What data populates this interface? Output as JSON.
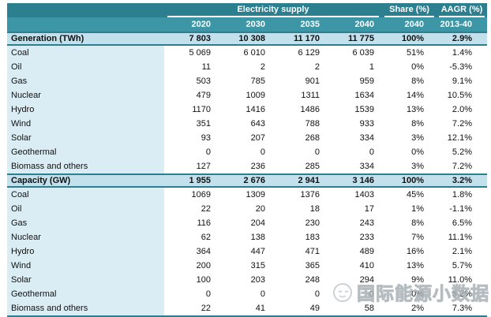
{
  "table": {
    "header": {
      "group_label": "Electricity supply",
      "share_label": "Share (%)",
      "aagr_label": "AAGR (%)",
      "year_columns": [
        "2020",
        "2030",
        "2035",
        "2040"
      ],
      "share_year": "2040",
      "aagr_period": "2013-40"
    },
    "sections": [
      {
        "title": "Generation (TWh)",
        "totals": [
          "7 803",
          "10 308",
          "11 170",
          "11 775",
          "100%",
          "2.9%"
        ],
        "rows": [
          {
            "label": "Coal",
            "values": [
              "5 069",
              "6 010",
              "6 129",
              "6 039",
              "51%",
              "1.4%"
            ]
          },
          {
            "label": "Oil",
            "values": [
              "11",
              "2",
              "2",
              "1",
              "0%",
              "-5.3%"
            ]
          },
          {
            "label": "Gas",
            "values": [
              "503",
              "785",
              "901",
              "959",
              "8%",
              "9.1%"
            ]
          },
          {
            "label": "Nuclear",
            "values": [
              "479",
              "1009",
              "1311",
              "1634",
              "14%",
              "10.5%"
            ]
          },
          {
            "label": "Hydro",
            "values": [
              "1170",
              "1416",
              "1486",
              "1539",
              "13%",
              "2.0%"
            ]
          },
          {
            "label": "Wind",
            "values": [
              "351",
              "643",
              "788",
              "933",
              "8%",
              "7.2%"
            ]
          },
          {
            "label": "Solar",
            "values": [
              "93",
              "207",
              "268",
              "334",
              "3%",
              "12.1%"
            ]
          },
          {
            "label": "Geothermal",
            "values": [
              "0",
              "0",
              "0",
              "0",
              "0%",
              "5.2%"
            ]
          },
          {
            "label": "Biomass and others",
            "values": [
              "127",
              "236",
              "285",
              "334",
              "3%",
              "7.2%"
            ]
          }
        ]
      },
      {
        "title": "Capacity (GW)",
        "totals": [
          "1 955",
          "2 676",
          "2 941",
          "3 146",
          "100%",
          "3.2%"
        ],
        "rows": [
          {
            "label": "Coal",
            "values": [
              "1069",
              "1309",
              "1376",
              "1403",
              "45%",
              "1.8%"
            ]
          },
          {
            "label": "Oil",
            "values": [
              "22",
              "20",
              "18",
              "17",
              "1%",
              "-1.1%"
            ]
          },
          {
            "label": "Gas",
            "values": [
              "116",
              "204",
              "230",
              "243",
              "8%",
              "6.5%"
            ]
          },
          {
            "label": "Nuclear",
            "values": [
              "62",
              "138",
              "183",
              "233",
              "7%",
              "11.1%"
            ]
          },
          {
            "label": "Hydro",
            "values": [
              "364",
              "447",
              "471",
              "489",
              "16%",
              "2.1%"
            ]
          },
          {
            "label": "Wind",
            "values": [
              "200",
              "315",
              "365",
              "410",
              "13%",
              "5.7%"
            ]
          },
          {
            "label": "Solar",
            "values": [
              "100",
              "203",
              "248",
              "294",
              "9%",
              "11.0%"
            ]
          },
          {
            "label": "Geothermal",
            "values": [
              "0",
              "0",
              "0",
              "0",
              "0%",
              "5.2%"
            ]
          },
          {
            "label": "Biomass and others",
            "values": [
              "22",
              "41",
              "49",
              "58",
              "2%",
              "7.3%"
            ]
          }
        ]
      }
    ]
  },
  "watermark": {
    "text": "国际能源小数据",
    "logo": "smiley-face-logo"
  },
  "colors": {
    "header_teal_dark": "#2B7F8E",
    "header_teal_light": "#3D96A5",
    "section_row_blue": "#C2E1ED",
    "label_column_blue": "#DAEDF5",
    "rule_teal": "#2B7F8E",
    "watermark_gray": "#BAC1C6"
  },
  "chart_data": {
    "type": "table",
    "title": "Electricity supply",
    "columns": [
      "",
      "2020",
      "2030",
      "2035",
      "2040",
      "Share (%) 2040",
      "AAGR (%) 2013-40"
    ],
    "rows": [
      [
        "Generation (TWh)",
        7803,
        10308,
        11170,
        11775,
        "100%",
        "2.9%"
      ],
      [
        "Coal",
        5069,
        6010,
        6129,
        6039,
        "51%",
        "1.4%"
      ],
      [
        "Oil",
        11,
        2,
        2,
        1,
        "0%",
        "-5.3%"
      ],
      [
        "Gas",
        503,
        785,
        901,
        959,
        "8%",
        "9.1%"
      ],
      [
        "Nuclear",
        479,
        1009,
        1311,
        1634,
        "14%",
        "10.5%"
      ],
      [
        "Hydro",
        1170,
        1416,
        1486,
        1539,
        "13%",
        "2.0%"
      ],
      [
        "Wind",
        351,
        643,
        788,
        933,
        "8%",
        "7.2%"
      ],
      [
        "Solar",
        93,
        207,
        268,
        334,
        "3%",
        "12.1%"
      ],
      [
        "Geothermal",
        0,
        0,
        0,
        0,
        "0%",
        "5.2%"
      ],
      [
        "Biomass and others",
        127,
        236,
        285,
        334,
        "3%",
        "7.2%"
      ],
      [
        "Capacity (GW)",
        1955,
        2676,
        2941,
        3146,
        "100%",
        "3.2%"
      ],
      [
        "Coal",
        1069,
        1309,
        1376,
        1403,
        "45%",
        "1.8%"
      ],
      [
        "Oil",
        22,
        20,
        18,
        17,
        "1%",
        "-1.1%"
      ],
      [
        "Gas",
        116,
        204,
        230,
        243,
        "8%",
        "6.5%"
      ],
      [
        "Nuclear",
        62,
        138,
        183,
        233,
        "7%",
        "11.1%"
      ],
      [
        "Hydro",
        364,
        447,
        471,
        489,
        "16%",
        "2.1%"
      ],
      [
        "Wind",
        200,
        315,
        365,
        410,
        "13%",
        "5.7%"
      ],
      [
        "Solar",
        100,
        203,
        248,
        294,
        "9%",
        "11.0%"
      ],
      [
        "Geothermal",
        0,
        0,
        0,
        0,
        "0%",
        "5.2%"
      ],
      [
        "Biomass and others",
        22,
        41,
        49,
        58,
        "2%",
        "7.3%"
      ]
    ]
  }
}
